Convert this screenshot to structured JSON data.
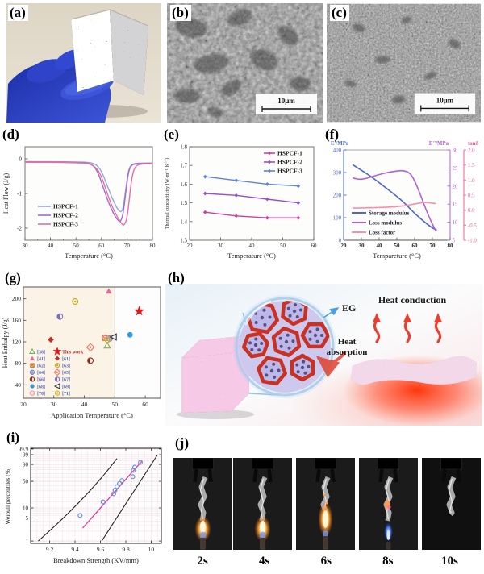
{
  "figure": {
    "panels": {
      "a": {
        "label": "(a)",
        "description": "photo of gloved hand holding speckled composite sheet"
      },
      "b": {
        "label": "(b)",
        "scale_bar": "10μm"
      },
      "c": {
        "label": "(c)",
        "scale_bar": "10μm"
      },
      "d": {
        "label": "(d)"
      },
      "e": {
        "label": "(e)"
      },
      "f": {
        "label": "(f)"
      },
      "g": {
        "label": "(g)"
      },
      "h": {
        "label": "(h)",
        "eg_label": "EG",
        "heat_absorption": "Heat absorption",
        "heat_conduction": "Heat conduction"
      },
      "i": {
        "label": "(i)"
      },
      "j": {
        "label": "(j)",
        "frames": [
          {
            "time": "2s",
            "flame": "orange"
          },
          {
            "time": "4s",
            "flame": "orange"
          },
          {
            "time": "6s",
            "flame": "orange-tall"
          },
          {
            "time": "8s",
            "flame": "blue-spark"
          },
          {
            "time": "10s",
            "flame": "none"
          }
        ]
      }
    }
  },
  "chart_data": [
    {
      "panel": "d",
      "type": "line",
      "xlabel": "Temperature (°C)",
      "ylabel": "Heat Flow (J/g)",
      "xlim": [
        30,
        80
      ],
      "ylim": [
        -2.35,
        0.35
      ],
      "xticks": [
        30,
        40,
        50,
        60,
        70,
        80
      ],
      "yticks": [
        0,
        -1,
        -2
      ],
      "legend_pos": "lower-left",
      "series": [
        {
          "name": "HSPCF-1",
          "color": "#8fa8dc",
          "points": [
            [
              30,
              -0.08
            ],
            [
              40,
              -0.08
            ],
            [
              50,
              -0.09
            ],
            [
              55,
              -0.1
            ],
            [
              58,
              -0.16
            ],
            [
              60,
              -0.35
            ],
            [
              62,
              -0.72
            ],
            [
              64,
              -1.1
            ],
            [
              66,
              -1.42
            ],
            [
              67.5,
              -1.55
            ],
            [
              68.5,
              -1.45
            ],
            [
              69.5,
              -0.9
            ],
            [
              70.5,
              -0.35
            ],
            [
              71.5,
              -0.18
            ],
            [
              73,
              -0.13
            ],
            [
              76,
              -0.12
            ],
            [
              80,
              -0.12
            ]
          ]
        },
        {
          "name": "HSPCF-2",
          "color": "#a06cd0",
          "points": [
            [
              30,
              -0.09
            ],
            [
              40,
              -0.09
            ],
            [
              50,
              -0.1
            ],
            [
              55,
              -0.12
            ],
            [
              57,
              -0.2
            ],
            [
              59,
              -0.45
            ],
            [
              61,
              -0.9
            ],
            [
              63,
              -1.3
            ],
            [
              65,
              -1.62
            ],
            [
              66.5,
              -1.78
            ],
            [
              67.5,
              -1.82
            ],
            [
              68.5,
              -1.6
            ],
            [
              69.5,
              -1.0
            ],
            [
              70.5,
              -0.4
            ],
            [
              71.5,
              -0.2
            ],
            [
              73,
              -0.14
            ],
            [
              80,
              -0.13
            ]
          ]
        },
        {
          "name": "HSPCF-3",
          "color": "#ec6ba4",
          "points": [
            [
              30,
              -0.1
            ],
            [
              40,
              -0.1
            ],
            [
              50,
              -0.11
            ],
            [
              55,
              -0.13
            ],
            [
              58,
              -0.25
            ],
            [
              60,
              -0.5
            ],
            [
              62,
              -0.95
            ],
            [
              64,
              -1.35
            ],
            [
              66,
              -1.65
            ],
            [
              68,
              -1.88
            ],
            [
              68.8,
              -1.93
            ],
            [
              70,
              -1.75
            ],
            [
              71,
              -1.1
            ],
            [
              72,
              -0.5
            ],
            [
              73,
              -0.25
            ],
            [
              74.5,
              -0.15
            ],
            [
              80,
              -0.14
            ]
          ]
        }
      ]
    },
    {
      "panel": "e",
      "type": "line-markers",
      "xlabel": "Temperature (°C)",
      "ylabel": "Thermal conductivity (W·m⁻¹·K⁻¹)",
      "xlim": [
        20,
        60
      ],
      "ylim": [
        1.3,
        1.8
      ],
      "xticks": [
        20,
        30,
        40,
        50,
        60
      ],
      "yticks": [
        1.3,
        1.4,
        1.5,
        1.6,
        1.7,
        1.8
      ],
      "x": [
        25,
        35,
        45,
        55
      ],
      "legend_pos": "top-right",
      "series": [
        {
          "name": "HSPCF-1",
          "color": "#cf3ea6",
          "values": [
            1.45,
            1.43,
            1.42,
            1.42
          ]
        },
        {
          "name": "HSPCF-2",
          "color": "#9a4fc8",
          "values": [
            1.55,
            1.54,
            1.52,
            1.5
          ]
        },
        {
          "name": "HSPCF-3",
          "color": "#5f83d6",
          "values": [
            1.64,
            1.62,
            1.6,
            1.59
          ]
        }
      ]
    },
    {
      "panel": "f",
      "type": "multi-axis-line",
      "xlabel": "Tempareture (°C)",
      "xlim": [
        20,
        80
      ],
      "xticks": [
        20,
        30,
        40,
        50,
        60,
        70,
        80
      ],
      "axes": {
        "left": {
          "label": "E'/MPa",
          "lim": [
            0,
            400
          ],
          "ticks": [
            0,
            100,
            200,
            300,
            400
          ],
          "color": "#4a68cc"
        },
        "right1": {
          "label": "E''/MPa",
          "lim": [
            5,
            30
          ],
          "ticks": [
            5,
            10,
            15,
            20,
            25,
            30
          ],
          "color": "#b55fd6"
        },
        "right2": {
          "label": "tanδ",
          "lim": [
            -1,
            2
          ],
          "ticks": [
            -1.0,
            -0.5,
            0.0,
            0.5,
            1.0,
            1.5,
            2.0
          ],
          "color": "#f06292"
        }
      },
      "series": [
        {
          "name": "Storage modulus",
          "axis": "left",
          "color": "#4a68cc",
          "points": [
            [
              25,
              335
            ],
            [
              30,
              310
            ],
            [
              35,
              285
            ],
            [
              40,
              255
            ],
            [
              45,
              225
            ],
            [
              50,
              195
            ],
            [
              55,
              160
            ],
            [
              58,
              135
            ],
            [
              62,
              105
            ],
            [
              66,
              78
            ],
            [
              69,
              60
            ],
            [
              71,
              50
            ],
            [
              72.5,
              45
            ]
          ]
        },
        {
          "name": "Loss modulus",
          "axis": "right1",
          "color": "#b55fd6",
          "points": [
            [
              25,
              22.3
            ],
            [
              28,
              21.8
            ],
            [
              32,
              22.0
            ],
            [
              36,
              22.6
            ],
            [
              40,
              23.2
            ],
            [
              45,
              23.8
            ],
            [
              50,
              24.2
            ],
            [
              53,
              24.3
            ],
            [
              56,
              24.0
            ],
            [
              58,
              23.2
            ],
            [
              60,
              21.5
            ],
            [
              63,
              18.0
            ],
            [
              66,
              14.0
            ],
            [
              69,
              10.5
            ],
            [
              72,
              7.5
            ]
          ]
        },
        {
          "name": "Loss factor",
          "axis": "right2",
          "color": "#f48fb1",
          "points": [
            [
              25,
              0.07
            ],
            [
              35,
              0.08
            ],
            [
              45,
              0.1
            ],
            [
              52,
              0.13
            ],
            [
              58,
              0.18
            ],
            [
              63,
              0.24
            ],
            [
              66,
              0.26
            ],
            [
              69,
              0.24
            ],
            [
              72,
              0.22
            ]
          ]
        }
      ]
    },
    {
      "panel": "g",
      "type": "scatter",
      "xlabel": "Application Temperature (°C)",
      "ylabel": "Heat Enthalpy (J/g)",
      "xlim": [
        20,
        65
      ],
      "ylim": [
        15,
        222
      ],
      "xticks": [
        20,
        30,
        40,
        50,
        60
      ],
      "yticks": [
        40,
        80,
        120,
        160,
        200
      ],
      "vline": 50,
      "bg_left": "#faf3e6",
      "bg_right": "#fdfdfd",
      "points": [
        {
          "ref": "[38]",
          "m": "tri-o",
          "c": "#7cb05c",
          "x": 47.5,
          "y": 113
        },
        {
          "ref": "[41]",
          "m": "tri",
          "c": "#e8679a",
          "x": 48,
          "y": 214
        },
        {
          "ref": "[62]",
          "m": "sq-x",
          "c": "#c87830",
          "x": 46.8,
          "y": 127
        },
        {
          "ref": "[64]",
          "m": "circ-plus",
          "c": "#6b7fd0",
          "x": 48.3,
          "y": 126
        },
        {
          "ref": "[66]",
          "m": "circ-half",
          "c": "#8b3020",
          "x": 42,
          "y": 85
        },
        {
          "ref": "[68]",
          "m": "circ",
          "c": "#2f9ae0",
          "x": 55,
          "y": 133
        },
        {
          "ref": "[70]",
          "m": "circ-h",
          "c": "#f090a8",
          "x": 47,
          "y": 128
        },
        {
          "ref": "This work",
          "m": "star",
          "c": "#e01818",
          "x": 58,
          "y": 177
        },
        {
          "ref": "[61]",
          "m": "dia",
          "c": "#c03028",
          "x": 29,
          "y": 124
        },
        {
          "ref": "[63]",
          "m": "circ-dot",
          "c": "#c8a418",
          "x": 37,
          "y": 195
        },
        {
          "ref": "[65]",
          "m": "dia-dot",
          "c": "#ea7a62",
          "x": 42,
          "y": 110
        },
        {
          "ref": "[67]",
          "m": "circ-half",
          "c": "#7a6fc0",
          "x": 32,
          "y": 167
        },
        {
          "ref": "[69]",
          "m": "tri-l",
          "c": "#333333",
          "x": 49.5,
          "y": 129
        },
        {
          "ref": "[71]",
          "m": "circ-dot",
          "c": "#d4b020",
          "x": 47.6,
          "y": 124
        }
      ],
      "legend": {
        "text_color": "#5b6bbf",
        "col1": [
          {
            "m": "tri-o",
            "c": "#7cb05c",
            "t": "[38]"
          },
          {
            "m": "tri",
            "c": "#e8679a",
            "t": "[41]"
          },
          {
            "m": "sq-x",
            "c": "#c87830",
            "t": "[62]"
          },
          {
            "m": "circ-plus",
            "c": "#6b7fd0",
            "t": "[64]"
          },
          {
            "m": "circ-half",
            "c": "#8b3020",
            "t": "[66]"
          },
          {
            "m": "circ",
            "c": "#2f9ae0",
            "t": "[68]"
          },
          {
            "m": "circ-h",
            "c": "#f090a8",
            "t": "[70]"
          }
        ],
        "col2": [
          {
            "m": "star",
            "c": "#e01818",
            "t": "This work",
            "tc": "#b03030"
          },
          {
            "m": "dia",
            "c": "#c03028",
            "t": "[61]"
          },
          {
            "m": "circ-dot",
            "c": "#c8a418",
            "t": "[63]"
          },
          {
            "m": "dia-dot",
            "c": "#ea7a62",
            "t": "[65]"
          },
          {
            "m": "circ-half",
            "c": "#7a6fc0",
            "t": "[67]"
          },
          {
            "m": "tri-l",
            "c": "#333333",
            "t": "[69]"
          },
          {
            "m": "circ-dot",
            "c": "#d4b020",
            "t": "[71]"
          }
        ]
      }
    },
    {
      "panel": "i",
      "type": "weibull",
      "xlabel": "Breakdown Strength (KV/mm)",
      "ylabel": "Weibull percentiles (%)",
      "xlim": [
        9.05,
        10.08
      ],
      "xticks": [
        9.2,
        9.4,
        9.6,
        9.8,
        10
      ],
      "yticks": [
        1,
        5,
        10,
        50,
        90,
        99,
        99.9
      ],
      "point_color": "#7090d8",
      "fit_color": "#e0389a",
      "bound_color": "#222222",
      "points": [
        [
          9.44,
          6
        ],
        [
          9.62,
          15
        ],
        [
          9.705,
          25
        ],
        [
          9.715,
          31
        ],
        [
          9.73,
          38
        ],
        [
          9.75,
          45
        ],
        [
          9.77,
          52
        ],
        [
          9.855,
          62
        ],
        [
          9.86,
          78
        ],
        [
          9.87,
          85
        ],
        [
          9.915,
          93
        ]
      ],
      "fit": {
        "from": [
          9.46,
          2.5
        ],
        "to": [
          9.93,
          95
        ]
      },
      "bounds": [
        {
          "pts": [
            [
              9.11,
              1
            ],
            [
              9.5,
              20
            ],
            [
              9.73,
              97
            ]
          ]
        },
        {
          "pts": [
            [
              9.61,
              1
            ],
            [
              9.85,
              25
            ],
            [
              10.05,
              99
            ]
          ]
        }
      ]
    }
  ]
}
